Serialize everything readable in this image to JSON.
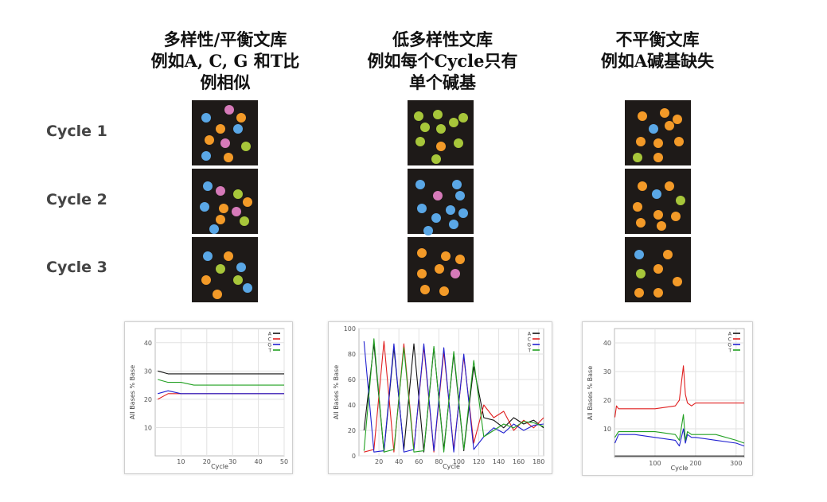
{
  "columns": [
    {
      "title_lines": [
        "多样性/平衡文库",
        "例如A, C, G 和T比",
        "例相似"
      ]
    },
    {
      "title_lines": [
        "低多样性文库",
        "例如每个Cycle只有",
        "单个碱基"
      ]
    },
    {
      "title_lines": [
        "不平衡文库",
        "例如A碱基缺失"
      ]
    }
  ],
  "rows": [
    {
      "label": "Cycle 1"
    },
    {
      "label": "Cycle 2"
    },
    {
      "label": "Cycle 3"
    }
  ],
  "colors": {
    "A": "#5aa7e6",
    "C": "#f39a28",
    "G": "#a7c63a",
    "T": "#d67ab9",
    "tile_bg": "#1e1a18"
  },
  "tiles": [
    [
      [
        "A",
        "T",
        "C",
        "C",
        "A",
        "C",
        "T",
        "G",
        "A",
        "C"
      ],
      [
        "A",
        "T",
        "G",
        "C",
        "A",
        "C",
        "T",
        "C",
        "G",
        "A"
      ],
      [
        "A",
        "C",
        "G",
        "A",
        "C",
        "G",
        "C",
        "A"
      ]
    ],
    [
      [
        "G",
        "G",
        "G",
        "G",
        "G",
        "G",
        "G",
        "C",
        "G",
        "G"
      ],
      [
        "A",
        "A",
        "A",
        "T",
        "A",
        "A",
        "A",
        "A",
        "A",
        "A"
      ],
      [
        "C",
        "C",
        "C",
        "C",
        "C",
        "T",
        "C",
        "C"
      ]
    ],
    [
      [
        "C",
        "C",
        "C",
        "A",
        "C",
        "C",
        "C",
        "C",
        "G",
        "C"
      ],
      [
        "C",
        "C",
        "A",
        "G",
        "C",
        "C",
        "C",
        "C",
        "C"
      ],
      [
        "A",
        "C",
        "G",
        "C",
        "C",
        "C",
        "C"
      ]
    ]
  ],
  "chart_data": [
    {
      "type": "line",
      "xlabel": "Cycle",
      "ylabel": "All Bases % Base",
      "xlim": [
        0,
        50
      ],
      "ylim": [
        0,
        45
      ],
      "xticks": [
        10,
        20,
        30,
        40,
        50
      ],
      "yticks": [
        10,
        20,
        30,
        40
      ],
      "legend": [
        "A",
        "C",
        "G",
        "T"
      ],
      "series": [
        {
          "name": "A",
          "color": "#111111",
          "x": [
            1,
            5,
            10,
            15,
            20,
            25,
            30,
            35,
            40,
            45,
            50
          ],
          "values": [
            30,
            29,
            29,
            29,
            29,
            29,
            29,
            29,
            29,
            29,
            29
          ]
        },
        {
          "name": "C",
          "color": "#e02020",
          "x": [
            1,
            5,
            10,
            15,
            20,
            25,
            30,
            35,
            40,
            45,
            50
          ],
          "values": [
            20,
            22,
            22,
            22,
            22,
            22,
            22,
            22,
            22,
            22,
            22
          ]
        },
        {
          "name": "G",
          "color": "#2020d0",
          "x": [
            1,
            5,
            10,
            15,
            20,
            25,
            30,
            35,
            40,
            45,
            50
          ],
          "values": [
            22,
            23,
            22,
            22,
            22,
            22,
            22,
            22,
            22,
            22,
            22
          ]
        },
        {
          "name": "T",
          "color": "#22a022",
          "x": [
            1,
            5,
            10,
            15,
            20,
            25,
            30,
            35,
            40,
            45,
            50
          ],
          "values": [
            27,
            26,
            26,
            25,
            25,
            25,
            25,
            25,
            25,
            25,
            25
          ]
        }
      ]
    },
    {
      "type": "line",
      "xlabel": "Cycle",
      "ylabel": "All Bases % Base",
      "xlim": [
        0,
        185
      ],
      "ylim": [
        0,
        100
      ],
      "xticks": [
        20,
        40,
        60,
        80,
        100,
        120,
        140,
        160,
        180
      ],
      "yticks": [
        0,
        20,
        40,
        60,
        80,
        100
      ],
      "legend": [
        "A",
        "C",
        "G",
        "T"
      ],
      "series": [
        {
          "name": "A",
          "color": "#111111",
          "x": [
            5,
            15,
            25,
            35,
            45,
            55,
            65,
            75,
            85,
            95,
            105,
            115,
            125,
            135,
            145,
            155,
            165,
            175,
            185
          ],
          "values": [
            20,
            88,
            3,
            85,
            5,
            88,
            3,
            85,
            5,
            80,
            4,
            70,
            30,
            28,
            22,
            30,
            25,
            28,
            22
          ]
        },
        {
          "name": "C",
          "color": "#e02020",
          "x": [
            5,
            15,
            25,
            35,
            45,
            55,
            65,
            75,
            85,
            95,
            105,
            115,
            125,
            135,
            145,
            155,
            165,
            175,
            185
          ],
          "values": [
            3,
            5,
            90,
            3,
            88,
            5,
            86,
            3,
            82,
            5,
            78,
            10,
            40,
            30,
            35,
            20,
            28,
            22,
            30
          ]
        },
        {
          "name": "G",
          "color": "#2020d0",
          "x": [
            5,
            15,
            25,
            35,
            45,
            55,
            65,
            75,
            85,
            95,
            105,
            115,
            125,
            135,
            145,
            155,
            165,
            175,
            185
          ],
          "values": [
            90,
            3,
            4,
            88,
            3,
            5,
            88,
            4,
            85,
            3,
            80,
            5,
            15,
            22,
            18,
            25,
            20,
            24,
            25
          ]
        },
        {
          "name": "T",
          "color": "#22a022",
          "x": [
            5,
            15,
            25,
            35,
            45,
            55,
            65,
            75,
            85,
            95,
            105,
            115,
            125,
            135,
            145,
            155,
            165,
            175,
            185
          ],
          "values": [
            4,
            92,
            3,
            5,
            85,
            3,
            4,
            86,
            3,
            82,
            5,
            75,
            15,
            20,
            25,
            22,
            27,
            26,
            23
          ]
        }
      ]
    },
    {
      "type": "line",
      "xlabel": "Cycle",
      "ylabel": "All Bases % Base",
      "xlim": [
        0,
        320
      ],
      "ylim": [
        0,
        45
      ],
      "xticks": [
        100,
        200,
        300
      ],
      "yticks": [
        10,
        20,
        30,
        40
      ],
      "legend": [
        "A",
        "C",
        "G",
        "T"
      ],
      "series": [
        {
          "name": "A",
          "color": "#111111",
          "x": [
            1,
            50,
            100,
            150,
            160,
            170,
            175,
            180,
            190,
            200,
            250,
            300,
            320
          ],
          "values": [
            0.5,
            0.5,
            0.5,
            0.5,
            0.5,
            0.5,
            0.5,
            0.5,
            0.5,
            0.5,
            0.5,
            0.5,
            0.5
          ]
        },
        {
          "name": "C",
          "color": "#e02020",
          "x": [
            1,
            5,
            10,
            50,
            100,
            150,
            160,
            170,
            175,
            180,
            190,
            200,
            250,
            300,
            320
          ],
          "values": [
            14,
            18,
            17,
            17,
            17,
            18,
            20,
            32,
            22,
            19,
            18,
            19,
            19,
            19,
            19
          ]
        },
        {
          "name": "G",
          "color": "#2020d0",
          "x": [
            1,
            10,
            50,
            100,
            150,
            160,
            170,
            175,
            180,
            190,
            200,
            250,
            300,
            320
          ],
          "values": [
            5,
            8,
            8,
            7,
            6,
            4,
            10,
            5,
            8,
            7,
            7,
            6,
            5,
            4
          ]
        },
        {
          "name": "T",
          "color": "#22a022",
          "x": [
            1,
            10,
            50,
            100,
            150,
            160,
            170,
            175,
            180,
            190,
            200,
            250,
            300,
            320
          ],
          "values": [
            7,
            9,
            9,
            9,
            8,
            6,
            15,
            6,
            9,
            8,
            8,
            8,
            6,
            5
          ]
        }
      ]
    }
  ]
}
